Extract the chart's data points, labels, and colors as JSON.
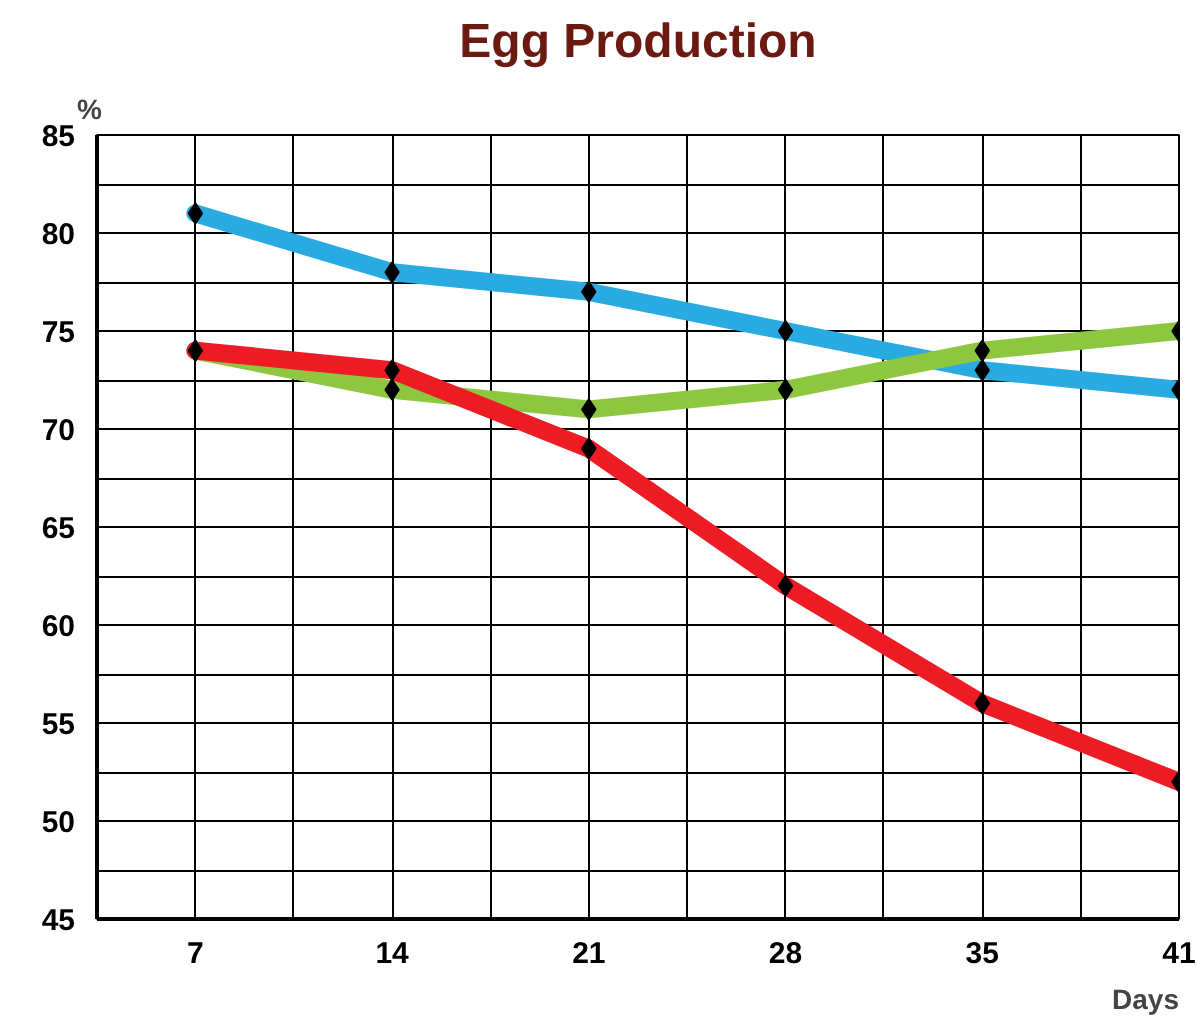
{
  "chart_data": {
    "type": "line",
    "title": "Egg Production",
    "ylabel": "%",
    "xlabel": "Days",
    "categories": [
      "7",
      "14",
      "21",
      "28",
      "35",
      "41"
    ],
    "series": [
      {
        "color": "#29abe2",
        "values": [
          81,
          78,
          77,
          75,
          73,
          72
        ]
      },
      {
        "color": "#8dc63f",
        "values": [
          74,
          72,
          71,
          72,
          74,
          75
        ]
      },
      {
        "color": "#ed1c24",
        "values": [
          74,
          73,
          69,
          62,
          56,
          52
        ]
      }
    ],
    "ylim": [
      45,
      85
    ],
    "yticks": [
      45,
      50,
      55,
      60,
      65,
      70,
      75,
      80,
      85
    ],
    "grid": true,
    "marker": "diamond",
    "line_style": "solid"
  }
}
